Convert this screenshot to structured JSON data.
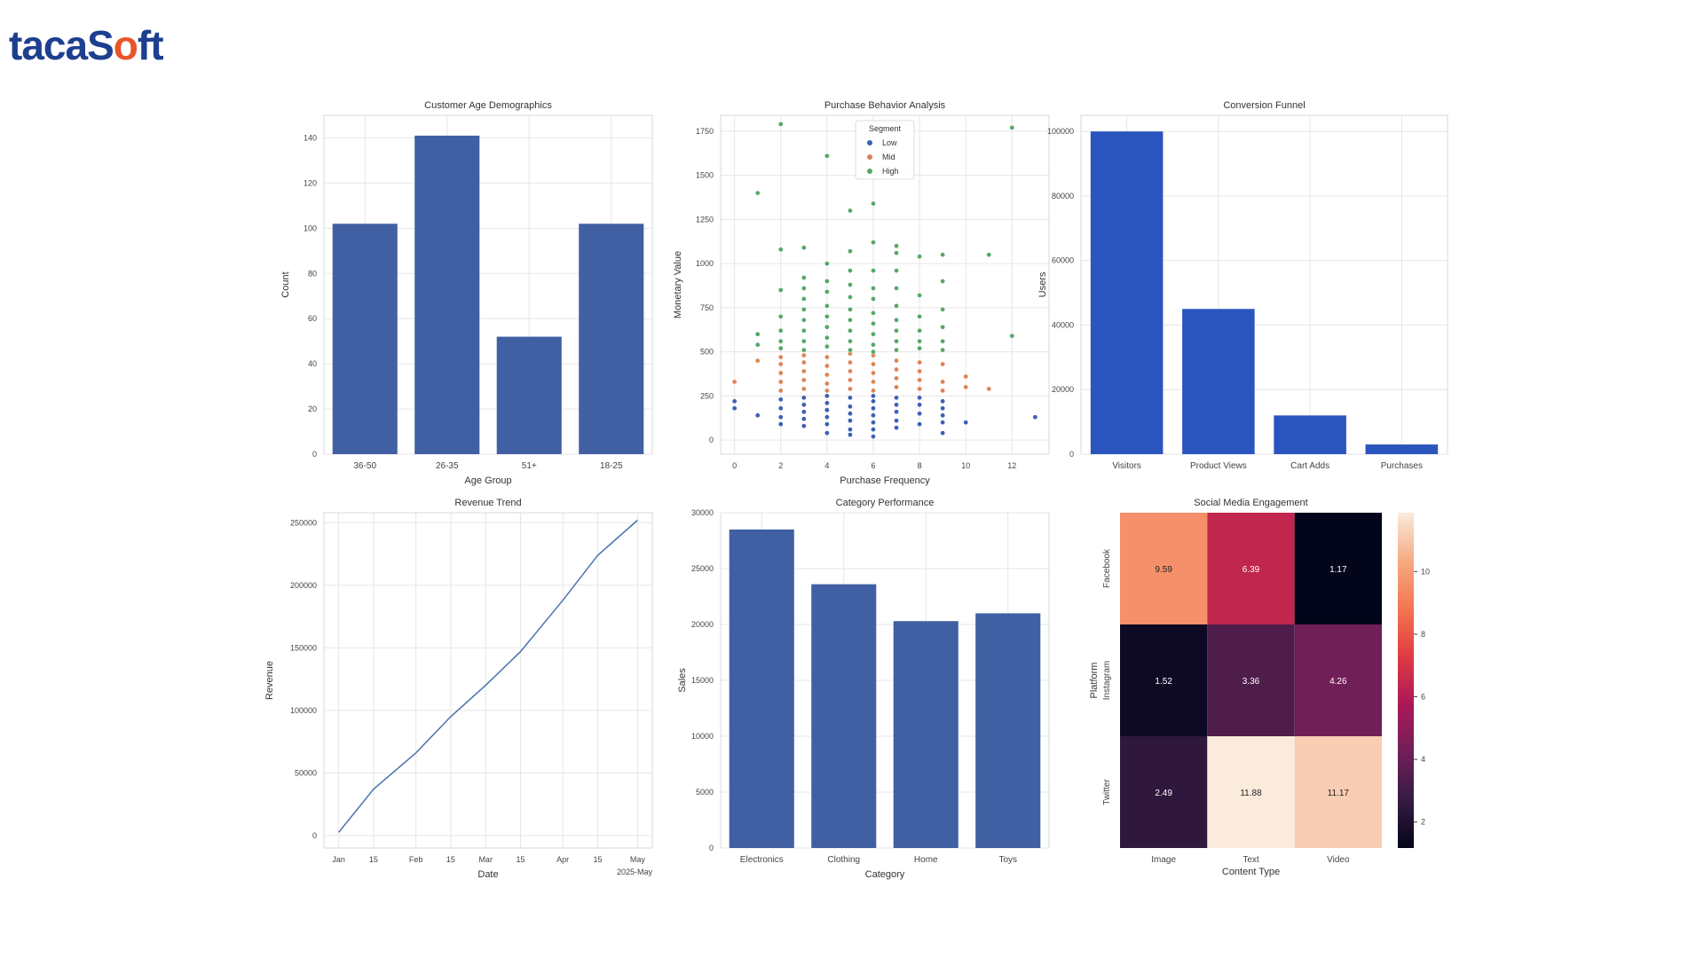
{
  "brand": {
    "part1": "taca",
    "part2": "S",
    "part3": "o",
    "part4": "ft"
  },
  "chart_data": [
    {
      "id": "age",
      "type": "bar",
      "title": "Customer Age Demographics",
      "xlabel": "Age Group",
      "ylabel": "Count",
      "categories": [
        "36-50",
        "26-35",
        "51+",
        "18-25"
      ],
      "values": [
        102,
        141,
        52,
        102
      ],
      "ylim": [
        0,
        150
      ],
      "yticks": [
        0,
        20,
        40,
        60,
        80,
        100,
        120,
        140
      ],
      "color": "#4160a3",
      "grid": true
    },
    {
      "id": "purchase",
      "type": "scatter",
      "title": "Purchase Behavior Analysis",
      "xlabel": "Purchase Frequency",
      "ylabel": "Monetary Value",
      "xlim": [
        -0.6,
        13.6
      ],
      "ylim": [
        -80,
        1840
      ],
      "xticks": [
        0,
        2,
        4,
        6,
        8,
        10,
        12
      ],
      "yticks": [
        0,
        250,
        500,
        750,
        1000,
        1250,
        1500,
        1750
      ],
      "legend": {
        "title": "Segment",
        "placement": "top-center"
      },
      "grid": true,
      "series": [
        {
          "name": "Low",
          "color": "#3b60b5",
          "points": [
            [
              0,
              220
            ],
            [
              0,
              180
            ],
            [
              1,
              140
            ],
            [
              2,
              230
            ],
            [
              2,
              180
            ],
            [
              2,
              130
            ],
            [
              2,
              90
            ],
            [
              3,
              240
            ],
            [
              3,
              200
            ],
            [
              3,
              160
            ],
            [
              3,
              120
            ],
            [
              3,
              80
            ],
            [
              4,
              250
            ],
            [
              4,
              210
            ],
            [
              4,
              170
            ],
            [
              4,
              130
            ],
            [
              4,
              90
            ],
            [
              4,
              40
            ],
            [
              5,
              240
            ],
            [
              5,
              190
            ],
            [
              5,
              150
            ],
            [
              5,
              110
            ],
            [
              5,
              60
            ],
            [
              5,
              30
            ],
            [
              6,
              250
            ],
            [
              6,
              220
            ],
            [
              6,
              180
            ],
            [
              6,
              140
            ],
            [
              6,
              100
            ],
            [
              6,
              60
            ],
            [
              6,
              20
            ],
            [
              7,
              240
            ],
            [
              7,
              200
            ],
            [
              7,
              160
            ],
            [
              7,
              110
            ],
            [
              7,
              70
            ],
            [
              8,
              240
            ],
            [
              8,
              200
            ],
            [
              8,
              150
            ],
            [
              8,
              90
            ],
            [
              9,
              220
            ],
            [
              9,
              180
            ],
            [
              9,
              140
            ],
            [
              9,
              100
            ],
            [
              9,
              40
            ],
            [
              10,
              100
            ],
            [
              13,
              130
            ]
          ]
        },
        {
          "name": "Mid",
          "color": "#dd8452",
          "points": [
            [
              0,
              330
            ],
            [
              1,
              450
            ],
            [
              2,
              280
            ],
            [
              2,
              330
            ],
            [
              2,
              380
            ],
            [
              2,
              430
            ],
            [
              2,
              470
            ],
            [
              3,
              290
            ],
            [
              3,
              340
            ],
            [
              3,
              390
            ],
            [
              3,
              440
            ],
            [
              3,
              480
            ],
            [
              4,
              280
            ],
            [
              4,
              320
            ],
            [
              4,
              370
            ],
            [
              4,
              420
            ],
            [
              4,
              470
            ],
            [
              5,
              290
            ],
            [
              5,
              340
            ],
            [
              5,
              390
            ],
            [
              5,
              440
            ],
            [
              5,
              490
            ],
            [
              6,
              280
            ],
            [
              6,
              330
            ],
            [
              6,
              380
            ],
            [
              6,
              430
            ],
            [
              6,
              480
            ],
            [
              7,
              300
            ],
            [
              7,
              350
            ],
            [
              7,
              400
            ],
            [
              7,
              450
            ],
            [
              8,
              290
            ],
            [
              8,
              340
            ],
            [
              8,
              390
            ],
            [
              8,
              440
            ],
            [
              9,
              280
            ],
            [
              9,
              330
            ],
            [
              9,
              430
            ],
            [
              10,
              300
            ],
            [
              10,
              360
            ],
            [
              11,
              290
            ]
          ]
        },
        {
          "name": "High",
          "color": "#55a868",
          "points": [
            [
              1,
              1400
            ],
            [
              1,
              600
            ],
            [
              1,
              540
            ],
            [
              2,
              1790
            ],
            [
              2,
              1080
            ],
            [
              2,
              850
            ],
            [
              2,
              700
            ],
            [
              2,
              620
            ],
            [
              2,
              560
            ],
            [
              2,
              520
            ],
            [
              3,
              1090
            ],
            [
              3,
              920
            ],
            [
              3,
              860
            ],
            [
              3,
              800
            ],
            [
              3,
              740
            ],
            [
              3,
              680
            ],
            [
              3,
              620
            ],
            [
              3,
              560
            ],
            [
              3,
              510
            ],
            [
              4,
              1610
            ],
            [
              4,
              1000
            ],
            [
              4,
              900
            ],
            [
              4,
              840
            ],
            [
              4,
              760
            ],
            [
              4,
              700
            ],
            [
              4,
              640
            ],
            [
              4,
              580
            ],
            [
              4,
              530
            ],
            [
              5,
              1300
            ],
            [
              5,
              1070
            ],
            [
              5,
              960
            ],
            [
              5,
              880
            ],
            [
              5,
              810
            ],
            [
              5,
              740
            ],
            [
              5,
              680
            ],
            [
              5,
              620
            ],
            [
              5,
              560
            ],
            [
              5,
              510
            ],
            [
              6,
              1340
            ],
            [
              6,
              1120
            ],
            [
              6,
              960
            ],
            [
              6,
              860
            ],
            [
              6,
              800
            ],
            [
              6,
              720
            ],
            [
              6,
              660
            ],
            [
              6,
              600
            ],
            [
              6,
              540
            ],
            [
              6,
              500
            ],
            [
              7,
              1100
            ],
            [
              7,
              1060
            ],
            [
              7,
              960
            ],
            [
              7,
              860
            ],
            [
              7,
              760
            ],
            [
              7,
              680
            ],
            [
              7,
              620
            ],
            [
              7,
              560
            ],
            [
              7,
              510
            ],
            [
              8,
              1040
            ],
            [
              8,
              820
            ],
            [
              8,
              700
            ],
            [
              8,
              620
            ],
            [
              8,
              560
            ],
            [
              8,
              520
            ],
            [
              9,
              1050
            ],
            [
              9,
              900
            ],
            [
              9,
              740
            ],
            [
              9,
              640
            ],
            [
              9,
              560
            ],
            [
              9,
              510
            ],
            [
              11,
              1050
            ],
            [
              12,
              1770
            ],
            [
              12,
              590
            ]
          ]
        }
      ]
    },
    {
      "id": "funnel",
      "type": "bar",
      "title": "Conversion Funnel",
      "ylabel": "Users",
      "categories": [
        "Visitors",
        "Product Views",
        "Cart Adds",
        "Purchases"
      ],
      "values": [
        100000,
        45000,
        12000,
        3000
      ],
      "ylim": [
        0,
        105000
      ],
      "yticks": [
        0,
        20000,
        40000,
        60000,
        80000,
        100000
      ],
      "color": "#2b55be",
      "grid": true
    },
    {
      "id": "revenue",
      "type": "line",
      "title": "Revenue Trend",
      "xlabel": "Date",
      "ylabel": "Revenue",
      "x": [
        "2025-01-01",
        "2025-01-15",
        "2025-02-01",
        "2025-02-15",
        "2025-03-01",
        "2025-03-15",
        "2025-04-01",
        "2025-04-15",
        "2025-05-01"
      ],
      "values": [
        2500,
        37000,
        66000,
        95000,
        120000,
        147000,
        188000,
        224000,
        252000
      ],
      "ylim": [
        -10000,
        258000
      ],
      "yticks": [
        0,
        50000,
        100000,
        150000,
        200000,
        250000
      ],
      "xticklabels": [
        "Jan",
        "15",
        "Feb",
        "15",
        "Mar",
        "15",
        "Apr",
        "15",
        "May"
      ],
      "offset_label": "2025-May",
      "color": "#4c72b0",
      "grid": true
    },
    {
      "id": "category",
      "type": "bar",
      "title": "Category Performance",
      "xlabel": "Category",
      "ylabel": "Sales",
      "categories": [
        "Electronics",
        "Clothing",
        "Home",
        "Toys"
      ],
      "values": [
        28500,
        23600,
        20300,
        21000
      ],
      "ylim": [
        0,
        30000
      ],
      "yticks": [
        0,
        5000,
        10000,
        15000,
        20000,
        25000,
        30000
      ],
      "color": "#4160a3",
      "grid": true
    },
    {
      "id": "social",
      "type": "heatmap",
      "title": "Social Media Engagement",
      "xlabel": "Content Type",
      "ylabel": "Platform",
      "columns": [
        "Image",
        "Text",
        "Video"
      ],
      "rows": [
        "Facebook",
        "Instagram",
        "Twitter"
      ],
      "values": [
        [
          9.59,
          6.39,
          1.17
        ],
        [
          1.52,
          3.36,
          4.26
        ],
        [
          2.49,
          11.88,
          11.17
        ]
      ],
      "labels": [
        [
          "9.59",
          "6.39",
          "1.17"
        ],
        [
          "1.52",
          "3.36",
          "4.26"
        ],
        [
          "2.49",
          "11.88",
          "11.17"
        ]
      ],
      "vmin": 1.17,
      "vmax": 11.88,
      "colorbar_ticks": [
        2,
        4,
        6,
        8,
        10
      ],
      "colormap": "rocket"
    }
  ]
}
